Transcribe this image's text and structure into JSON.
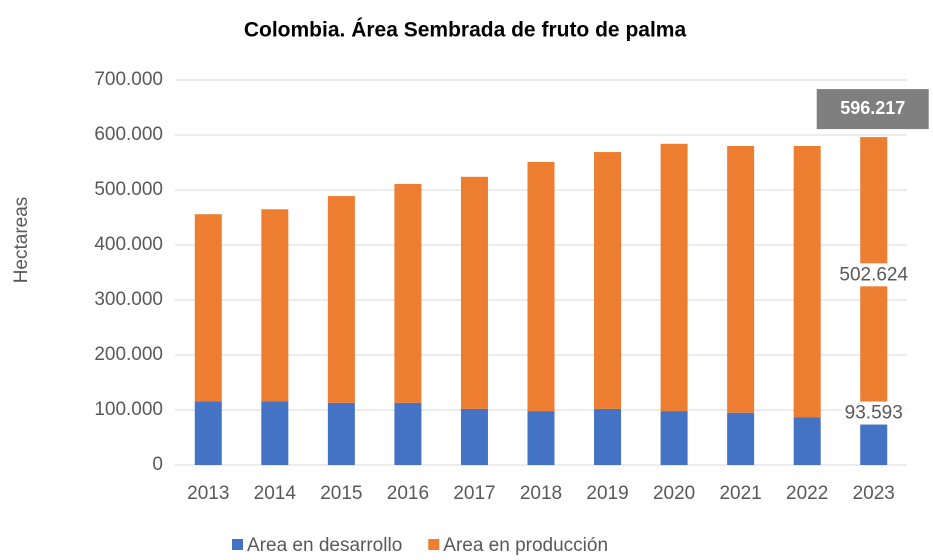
{
  "chart_data": {
    "type": "stacked_bar",
    "title": "Colombia. Área Sembrada de fruto de palma",
    "y_label": "Hectareas",
    "categories": [
      "2013",
      "2014",
      "2015",
      "2016",
      "2017",
      "2018",
      "2019",
      "2020",
      "2021",
      "2022",
      "2023"
    ],
    "series": [
      {
        "name": "Area en desarrollo",
        "color": "#4472c4",
        "values": [
          116000,
          116000,
          113000,
          113000,
          102000,
          98000,
          102000,
          98000,
          95000,
          87000,
          93593
        ],
        "value_labels": [
          null,
          null,
          null,
          null,
          null,
          null,
          null,
          null,
          null,
          null,
          "93.593"
        ]
      },
      {
        "name": "Area en producción",
        "color": "#ed7d31",
        "values": [
          340000,
          349000,
          376000,
          398000,
          422000,
          453000,
          467000,
          486000,
          485000,
          493000,
          502624
        ],
        "value_labels": [
          null,
          null,
          null,
          null,
          null,
          null,
          null,
          null,
          null,
          null,
          "502.624"
        ]
      }
    ],
    "annotations": [
      {
        "x": "2023",
        "value": 596217,
        "label": "596.217"
      }
    ],
    "ylim": [
      0,
      700000
    ],
    "yticks": [
      0,
      {
        "value": 100000,
        "label": "100.000"
      },
      {
        "value": 200000,
        "label": "200.000"
      },
      {
        "value": 300000,
        "label": "300.000"
      },
      {
        "value": 400000,
        "label": "400.000"
      },
      {
        "value": 500000,
        "label": "500.000"
      },
      {
        "value": 600000,
        "label": "600.000"
      },
      {
        "value": 700000,
        "label": "700.000"
      }
    ],
    "grid": true,
    "legend": "bottom"
  }
}
